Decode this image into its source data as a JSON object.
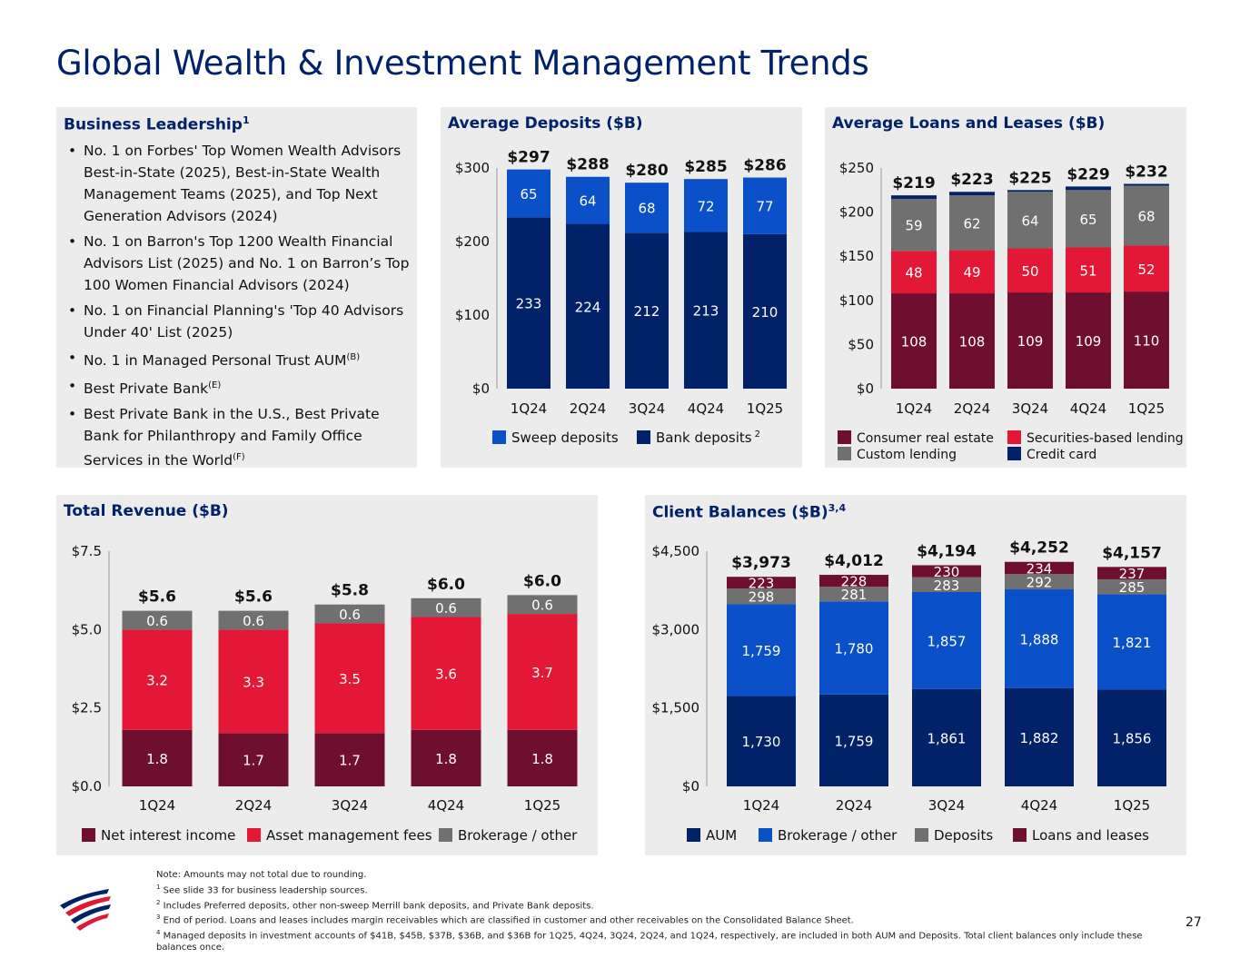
{
  "page": {
    "title": "Global Wealth & Investment Management Trends",
    "page_number": "27"
  },
  "leadership": {
    "title": "Business Leadership",
    "title_sup": "1",
    "bullets": [
      {
        "text": "No. 1 on Forbes' Top Women Wealth Advisors Best-in-State (2025), Best-in-State Wealth Management Teams (2025), and Top Next Generation Advisors (2024)",
        "sup": ""
      },
      {
        "text": "No. 1 on Barron's Top 1200 Wealth Financial Advisors List (2025) and No. 1 on Barron’s Top 100 Women Financial Advisors (2024)",
        "sup": ""
      },
      {
        "text": "No. 1 on Financial Planning's 'Top 40 Advisors Under 40' List (2025)",
        "sup": ""
      },
      {
        "text": "No. 1 in Managed Personal Trust AUM",
        "sup": "(B)"
      },
      {
        "text": "Best Private Bank",
        "sup": "(E)"
      },
      {
        "text": "Best Private Bank in the U.S., Best Private Bank for Philanthropy and Family Office Services in the World",
        "sup": "(F)"
      }
    ]
  },
  "colors": {
    "navy": "#012169",
    "blue": "#0a50c8",
    "maroon": "#6e0f2f",
    "red": "#e31837",
    "gray": "#707070",
    "title_blue": "#012169"
  },
  "chart_data": [
    {
      "id": "deposits",
      "type": "bar",
      "stacked": true,
      "title": "Average Deposits ($B)",
      "categories": [
        "1Q24",
        "2Q24",
        "3Q24",
        "4Q24",
        "1Q25"
      ],
      "series": [
        {
          "name": "Bank deposits",
          "name_sup": "2",
          "values": [
            233,
            224,
            212,
            213,
            210
          ],
          "labels": [
            "233",
            "224",
            "212",
            "213",
            "210"
          ],
          "color": "#012169"
        },
        {
          "name": "Sweep deposits",
          "values": [
            65,
            64,
            68,
            72,
            77
          ],
          "labels": [
            "65",
            "64",
            "68",
            "72",
            "77"
          ],
          "color": "#0a50c8"
        }
      ],
      "totals": [
        "$297",
        "$288",
        "$280",
        "$285",
        "$286"
      ],
      "ylim": [
        0,
        300
      ],
      "yticks": [
        0,
        100,
        200,
        300
      ],
      "ytick_labels": [
        "$0",
        "$100",
        "$200",
        "$300"
      ],
      "legend": [
        "Sweep deposits",
        "Bank deposits"
      ]
    },
    {
      "id": "loans",
      "type": "bar",
      "stacked": true,
      "title": "Average Loans and Leases ($B)",
      "categories": [
        "1Q24",
        "2Q24",
        "3Q24",
        "4Q24",
        "1Q25"
      ],
      "series": [
        {
          "name": "Consumer real estate",
          "values": [
            108,
            108,
            109,
            109,
            110
          ],
          "labels": [
            "108",
            "108",
            "109",
            "109",
            "110"
          ],
          "color": "#6e0f2f"
        },
        {
          "name": "Securities-based lending",
          "values": [
            48,
            49,
            50,
            51,
            52
          ],
          "labels": [
            "48",
            "49",
            "50",
            "51",
            "52"
          ],
          "color": "#e31837"
        },
        {
          "name": "Custom lending",
          "values": [
            59,
            62,
            64,
            65,
            68
          ],
          "labels": [
            "59",
            "62",
            "64",
            "65",
            "68"
          ],
          "color": "#707070"
        },
        {
          "name": "Credit card",
          "values": [
            4,
            4,
            2,
            4,
            2
          ],
          "labels": [
            "",
            "",
            "",
            "",
            ""
          ],
          "color": "#012169"
        }
      ],
      "totals": [
        "$219",
        "$223",
        "$225",
        "$229",
        "$232"
      ],
      "ylim": [
        0,
        250
      ],
      "yticks": [
        0,
        50,
        100,
        150,
        200,
        250
      ],
      "ytick_labels": [
        "$0",
        "$50",
        "$100",
        "$150",
        "$200",
        "$250"
      ],
      "legend": [
        "Consumer real estate",
        "Securities-based lending",
        "Custom lending",
        "Credit card"
      ]
    },
    {
      "id": "revenue",
      "type": "bar",
      "stacked": true,
      "title": "Total Revenue ($B)",
      "categories": [
        "1Q24",
        "2Q24",
        "3Q24",
        "4Q24",
        "1Q25"
      ],
      "series": [
        {
          "name": "Net interest income",
          "values": [
            1.8,
            1.7,
            1.7,
            1.8,
            1.8
          ],
          "labels": [
            "1.8",
            "1.7",
            "1.7",
            "1.8",
            "1.8"
          ],
          "color": "#6e0f2f"
        },
        {
          "name": "Asset management fees",
          "values": [
            3.2,
            3.3,
            3.5,
            3.6,
            3.7
          ],
          "labels": [
            "3.2",
            "3.3",
            "3.5",
            "3.6",
            "3.7"
          ],
          "color": "#e31837"
        },
        {
          "name": "Brokerage / other",
          "values": [
            0.6,
            0.6,
            0.6,
            0.6,
            0.6
          ],
          "labels": [
            "0.6",
            "0.6",
            "0.6",
            "0.6",
            "0.6"
          ],
          "color": "#707070"
        }
      ],
      "totals": [
        "$5.6",
        "$5.6",
        "$5.8",
        "$6.0",
        "$6.0"
      ],
      "ylim": [
        0,
        7.5
      ],
      "yticks": [
        0,
        2.5,
        5,
        7.5
      ],
      "ytick_labels": [
        "$0.0",
        "$2.5",
        "$5.0",
        "$7.5"
      ],
      "legend": [
        "Net interest income",
        "Asset management fees",
        "Brokerage / other"
      ]
    },
    {
      "id": "balances",
      "type": "bar",
      "stacked": true,
      "title": "Client Balances ($B)",
      "title_sup": "3,4",
      "categories": [
        "1Q24",
        "2Q24",
        "3Q24",
        "4Q24",
        "1Q25"
      ],
      "series": [
        {
          "name": "AUM",
          "values": [
            1730,
            1759,
            1861,
            1882,
            1856
          ],
          "labels": [
            "1,730",
            "1,759",
            "1,861",
            "1,882",
            "1,856"
          ],
          "color": "#012169"
        },
        {
          "name": "Brokerage / other",
          "values": [
            1759,
            1780,
            1857,
            1888,
            1821
          ],
          "labels": [
            "1,759",
            "1,780",
            "1,857",
            "1,888",
            "1,821"
          ],
          "color": "#0a50c8"
        },
        {
          "name": "Deposits",
          "values": [
            298,
            281,
            283,
            292,
            285
          ],
          "labels": [
            "298",
            "281",
            "283",
            "292",
            "285"
          ],
          "color": "#707070"
        },
        {
          "name": "Loans and leases",
          "values": [
            223,
            228,
            230,
            234,
            237
          ],
          "labels": [
            "223",
            "228",
            "230",
            "234",
            "237"
          ],
          "color": "#6e0f2f"
        }
      ],
      "totals": [
        "$3,973",
        "$4,012",
        "$4,194",
        "$4,252",
        "$4,157"
      ],
      "ylim": [
        0,
        4500
      ],
      "yticks": [
        0,
        1500,
        3000,
        4500
      ],
      "ytick_labels": [
        "$0",
        "$1,500",
        "$3,000",
        "$4,500"
      ],
      "legend": [
        "AUM",
        "Brokerage / other",
        "Deposits",
        "Loans and leases"
      ]
    }
  ],
  "footnotes": {
    "note": "Note: Amounts may not total due to rounding.",
    "items": [
      {
        "num": "1",
        "text": "See slide 33 for business leadership sources."
      },
      {
        "num": "2",
        "text": "Includes Preferred deposits, other non-sweep Merrill bank deposits, and Private Bank deposits."
      },
      {
        "num": "3",
        "text": "End of period. Loans and leases includes margin receivables which are classified in customer and other receivables on the Consolidated Balance Sheet."
      },
      {
        "num": "4",
        "text": "Managed deposits in investment accounts of $41B, $45B, $37B, $36B, and $36B for 1Q25, 4Q24, 3Q24, 2Q24, and 1Q24, respectively, are included in both AUM and Deposits. Total client balances only include these balances once."
      }
    ]
  }
}
